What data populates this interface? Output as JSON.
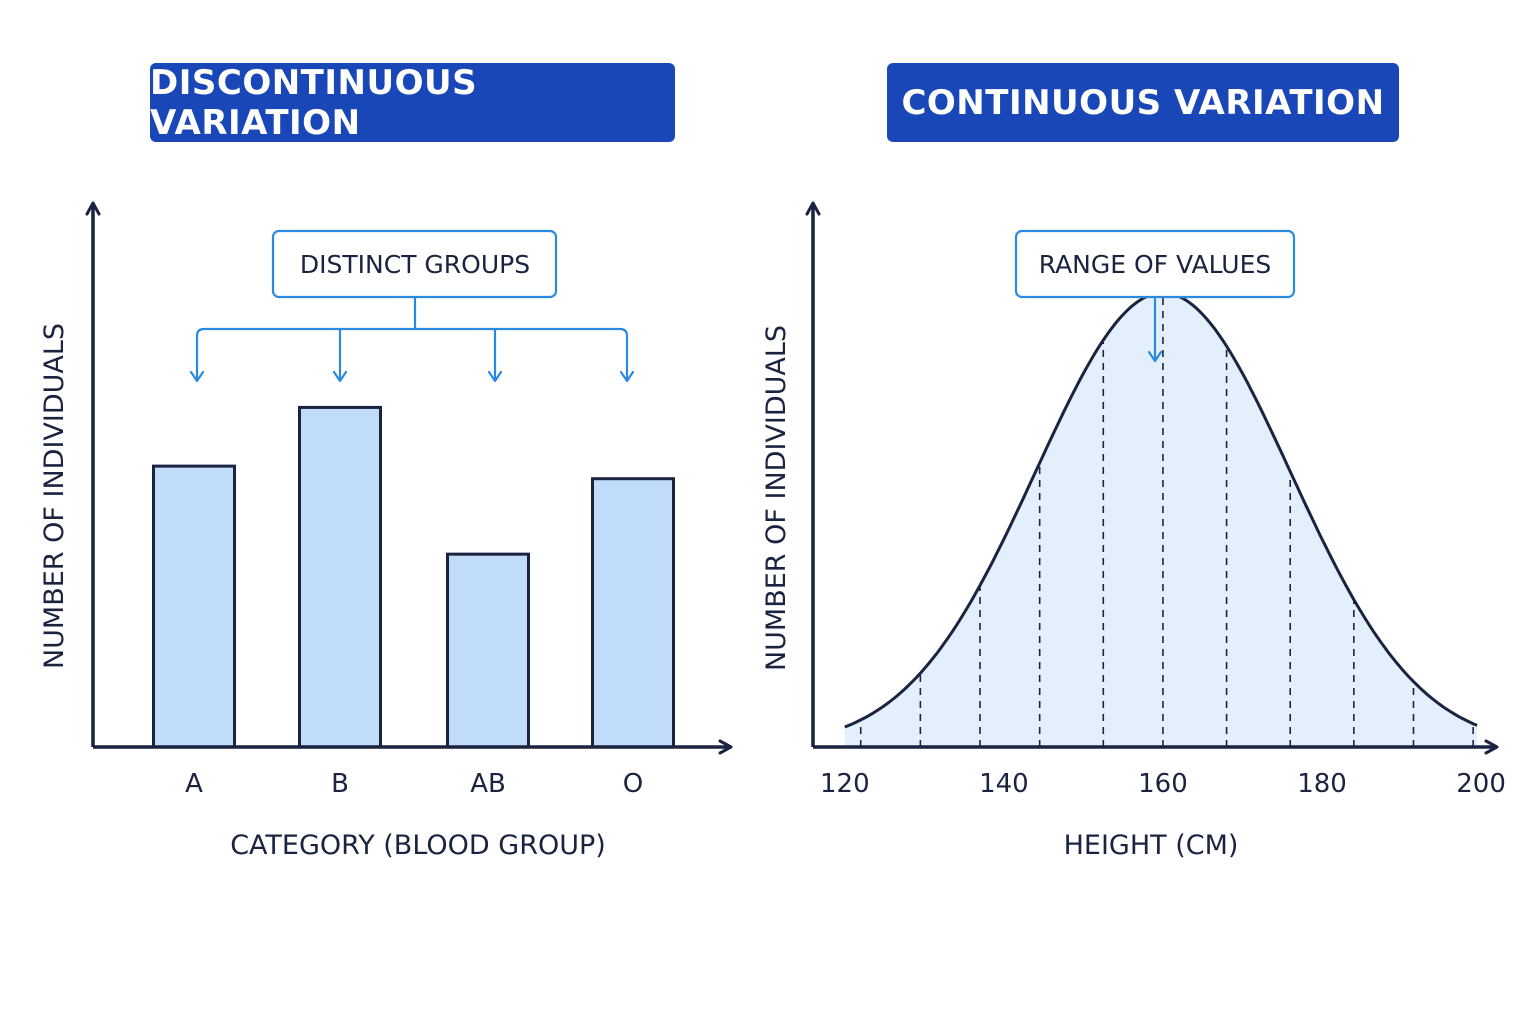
{
  "chart_data": [
    {
      "type": "bar",
      "title": "DISCONTINUOUS VARIATION",
      "callout": "DISTINCT GROUPS",
      "categories": [
        "A",
        "B",
        "AB",
        "O"
      ],
      "values": [
        67,
        81,
        46,
        64
      ],
      "ylim": [
        0,
        130
      ],
      "xlabel": "CATEGORY (BLOOD GROUP)",
      "ylabel": "NUMBER OF INDIVIDUALS",
      "grid": false,
      "colors": {
        "bar_fill": "#c0dcf8",
        "bar_stroke": "#1a2340",
        "callout": "#2b8ae0",
        "axis": "#1a2340"
      }
    },
    {
      "type": "area",
      "title": "CONTINUOUS VARIATION",
      "callout": "RANGE OF VALUES",
      "distribution": "normal",
      "mean": 160,
      "sd": 16,
      "xlim": [
        116,
        202
      ],
      "xticks": [
        120,
        140,
        160,
        180,
        200
      ],
      "dashed_x": [
        122,
        129.5,
        137,
        144.5,
        152.5,
        160,
        168,
        176,
        184,
        191.5,
        199
      ],
      "ylim": [
        0,
        1.2
      ],
      "xlabel": "HEIGHT (CM)",
      "ylabel": "NUMBER OF INDIVIDUALS",
      "grid": false,
      "colors": {
        "area_fill": "#e3f0fc",
        "curve": "#1a2340",
        "callout": "#2b8ae0",
        "axis": "#1a2340"
      }
    }
  ]
}
